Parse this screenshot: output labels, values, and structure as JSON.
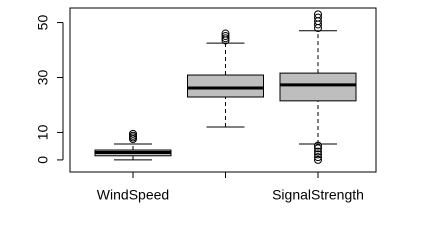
{
  "chart_data": {
    "type": "boxplot",
    "categories": [
      "WindSpeed",
      null,
      "SignalStrength"
    ],
    "boxes": [
      {
        "whisker_low": 0,
        "q1": 1.5,
        "median": 2.7,
        "q3": 3.6,
        "whisker_high": 5.8,
        "outliers": [
          7.6,
          8.2,
          8.8,
          9.5
        ]
      },
      {
        "whisker_low": 12,
        "q1": 22.9,
        "median": 26.2,
        "q3": 30.9,
        "whisker_high": 42.5,
        "outliers": [
          43.5,
          44.3,
          45.1,
          46
        ]
      },
      {
        "whisker_low": 5.8,
        "q1": 21.5,
        "median": 27.3,
        "q3": 31.6,
        "whisker_high": 47,
        "outliers": [
          48,
          49.3,
          50.5,
          51.8,
          53,
          0,
          1,
          2,
          3,
          4.2,
          5.2
        ]
      }
    ],
    "color": "#bebebe",
    "ylim": [
      -4.4,
      55.3
    ],
    "yticks": [
      0,
      10,
      30,
      50
    ]
  }
}
